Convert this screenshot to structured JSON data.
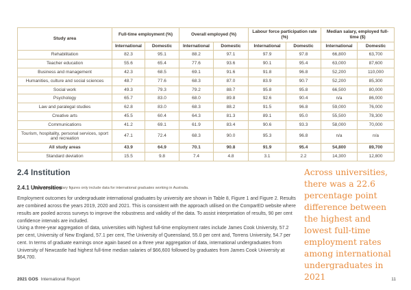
{
  "colors": {
    "table_border": "#d8c8a0",
    "accent_orange": "#e78b3d",
    "heading": "#3d4750"
  },
  "table": {
    "study_area_header": "Study area",
    "col_groups": [
      {
        "label": "Full-time employment (%)"
      },
      {
        "label": "Overall employed (%)"
      },
      {
        "label": "Labour force participation rate (%)"
      },
      {
        "label": "Median salary, employed full-time ($)"
      }
    ],
    "sub_headers": [
      "International",
      "Domestic",
      "International",
      "Domestic",
      "International",
      "Domestic",
      "International",
      "Domestic"
    ],
    "rows": [
      {
        "area": "Rehabilitation",
        "bold": false,
        "values": [
          "82.3",
          "95.1",
          "88.2",
          "97.1",
          "97.9",
          "97.8",
          "66,800",
          "63,700"
        ]
      },
      {
        "area": "Teacher education",
        "bold": false,
        "values": [
          "55.6",
          "65.4",
          "77.6",
          "93.6",
          "90.1",
          "95.4",
          "63,000",
          "87,600"
        ]
      },
      {
        "area": "Business and management",
        "bold": false,
        "values": [
          "42.3",
          "68.5",
          "69.1",
          "91.6",
          "91.8",
          "96.8",
          "52,200",
          "110,000"
        ]
      },
      {
        "area": "Humanities, culture and social sciences",
        "bold": false,
        "values": [
          "48.7",
          "77.6",
          "68.3",
          "87.0",
          "83.9",
          "90.7",
          "52,200",
          "85,300"
        ]
      },
      {
        "area": "Social work",
        "bold": false,
        "values": [
          "49.3",
          "79.3",
          "79.2",
          "88.7",
          "95.8",
          "95.8",
          "66,500",
          "80,000"
        ]
      },
      {
        "area": "Psychology",
        "bold": false,
        "values": [
          "65.7",
          "83.0",
          "68.0",
          "89.8",
          "92.6",
          "90.4",
          "n/a",
          "86,000"
        ]
      },
      {
        "area": "Law and paralegal studies",
        "bold": false,
        "values": [
          "62.8",
          "83.0",
          "68.3",
          "88.2",
          "91.5",
          "96.8",
          "59,000",
          "76,000"
        ]
      },
      {
        "area": "Creative arts",
        "bold": false,
        "values": [
          "45.5",
          "60.4",
          "64.3",
          "81.3",
          "89.1",
          "95.0",
          "55,500",
          "78,300"
        ]
      },
      {
        "area": "Communications",
        "bold": false,
        "values": [
          "41.2",
          "69.1",
          "61.9",
          "83.4",
          "90.6",
          "93.3",
          "58,000",
          "70,000"
        ]
      },
      {
        "area": "Tourism, hospitality, personal services, sport and recreation",
        "bold": false,
        "values": [
          "47.1",
          "72.4",
          "68.3",
          "90.0",
          "95.3",
          "96.8",
          "n/a",
          "n/a"
        ]
      },
      {
        "area": "All study areas",
        "bold": true,
        "values": [
          "43.9",
          "64.9",
          "70.1",
          "90.8",
          "91.9",
          "95.4",
          "54,800",
          "89,700"
        ]
      },
      {
        "area": "Standard deviation",
        "bold": false,
        "values": [
          "15.5",
          "9.8",
          "7.4",
          "4.8",
          "3.1",
          "2.2",
          "14,300",
          "12,800"
        ]
      }
    ],
    "note": "Note: Median salary figures only include data for international graduates working in Australia."
  },
  "section": {
    "heading": "2.4 Institution",
    "subheading": "2.4.1 Universities",
    "paragraphs": [
      "Employment outcomes for undergraduate international graduates by university are shown in Table 8, Figure 1 and Figure 2. Results are combined across the years 2019, 2020 and 2021. This is consistent with the approach utilised on the ComparED website where results are pooled across surveys to improve the robustness and validity of the data. To assist interpretation of results, 90 per cent confidence intervals are included.",
      "Using a three-year aggregation of data, universities with highest full-time employment rates include James Cook University, 57.2 per cent, University of New England, 57.1 per cent, The University of Queensland, 55.0 per cent and, Torrens University, 54.7 per cent. In terms of graduate earnings once again based on a three year aggregation of data, international undergraduates from University of Newcastle had highest full-time median salaries of $66,600 followed by graduates from James Cook University at $64,700."
    ]
  },
  "pull_quote": {
    "text": "Across universities, there was a 22.6 percentage point difference between the highest and lowest full-time employment rates among international undergraduates in 2021"
  },
  "footer": {
    "left_bold": "2021 GOS",
    "left_rest": "International Report",
    "page_number": "11"
  }
}
